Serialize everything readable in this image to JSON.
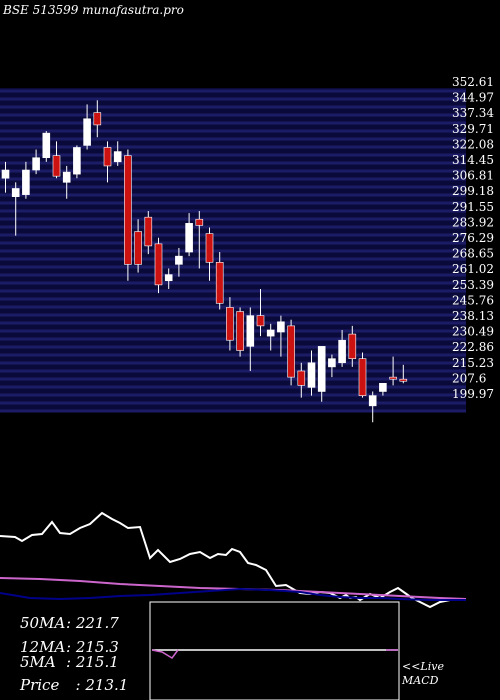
{
  "title": "BSE 513599 munafasutra.pro",
  "chart_data": {
    "type": "candlestick",
    "y_axis_labels": [
      "352.61",
      "344.97",
      "337.34",
      "329.71",
      "322.08",
      "314.45",
      "306.81",
      "299.18",
      "291.55",
      "283.92",
      "276.29",
      "268.65",
      "261.02",
      "253.39",
      "245.76",
      "238.13",
      "230.49",
      "222.86",
      "215.23",
      "207.6",
      "199.97"
    ],
    "ylim": [
      198,
      356
    ],
    "candles": [
      {
        "o": 312,
        "h": 320,
        "l": 305,
        "c": 316
      },
      {
        "o": 303,
        "h": 310,
        "l": 284,
        "c": 307
      },
      {
        "o": 304,
        "h": 320,
        "l": 302,
        "c": 316
      },
      {
        "o": 316,
        "h": 326,
        "l": 314,
        "c": 322
      },
      {
        "o": 322,
        "h": 335,
        "l": 320,
        "c": 334
      },
      {
        "o": 323,
        "h": 330,
        "l": 312,
        "c": 313
      },
      {
        "o": 310,
        "h": 318,
        "l": 302,
        "c": 315
      },
      {
        "o": 314,
        "h": 328,
        "l": 312,
        "c": 327
      },
      {
        "o": 328,
        "h": 348,
        "l": 326,
        "c": 341
      },
      {
        "o": 344,
        "h": 350,
        "l": 332,
        "c": 338
      },
      {
        "o": 327,
        "h": 330,
        "l": 310,
        "c": 318
      },
      {
        "o": 320,
        "h": 330,
        "l": 318,
        "c": 325
      },
      {
        "o": 323,
        "h": 326,
        "l": 262,
        "c": 270
      },
      {
        "o": 286,
        "h": 292,
        "l": 266,
        "c": 270
      },
      {
        "o": 293,
        "h": 296,
        "l": 275,
        "c": 279
      },
      {
        "o": 280,
        "h": 283,
        "l": 256,
        "c": 260
      },
      {
        "o": 262,
        "h": 268,
        "l": 258,
        "c": 265
      },
      {
        "o": 270,
        "h": 278,
        "l": 264,
        "c": 274
      },
      {
        "o": 276,
        "h": 295,
        "l": 274,
        "c": 290
      },
      {
        "o": 292,
        "h": 296,
        "l": 268,
        "c": 289
      },
      {
        "o": 285,
        "h": 288,
        "l": 262,
        "c": 271
      },
      {
        "o": 271,
        "h": 276,
        "l": 248,
        "c": 251
      },
      {
        "o": 249,
        "h": 254,
        "l": 228,
        "c": 233
      },
      {
        "o": 247,
        "h": 249,
        "l": 225,
        "c": 228
      },
      {
        "o": 230,
        "h": 249,
        "l": 218,
        "c": 245
      },
      {
        "o": 245,
        "h": 258,
        "l": 235,
        "c": 240
      },
      {
        "o": 235,
        "h": 241,
        "l": 228,
        "c": 238
      },
      {
        "o": 237,
        "h": 245,
        "l": 225,
        "c": 242
      },
      {
        "o": 240,
        "h": 243,
        "l": 211,
        "c": 215
      },
      {
        "o": 218,
        "h": 222,
        "l": 205,
        "c": 211
      },
      {
        "o": 210,
        "h": 228,
        "l": 206,
        "c": 222
      },
      {
        "o": 208,
        "h": 230,
        "l": 203,
        "c": 230
      },
      {
        "o": 220,
        "h": 226,
        "l": 215,
        "c": 224
      },
      {
        "o": 222,
        "h": 238,
        "l": 220,
        "c": 233
      },
      {
        "o": 236,
        "h": 240,
        "l": 220,
        "c": 224
      },
      {
        "o": 224,
        "h": 227,
        "l": 205,
        "c": 206
      },
      {
        "o": 201,
        "h": 208,
        "l": 193,
        "c": 206
      },
      {
        "o": 208,
        "h": 212,
        "l": 206,
        "c": 212
      },
      {
        "o": 215,
        "h": 225,
        "l": 211,
        "c": 214
      },
      {
        "o": 214,
        "h": 221,
        "l": 212,
        "c": 213
      }
    ],
    "moving_averages": {
      "ma50": "221.7",
      "ma12": "215.3",
      "ma5": "215.1",
      "price": "213.1"
    },
    "colors": {
      "up": "#ffffff",
      "down": "#cc1111",
      "grid": "#1c1c66",
      "volume_line": "#ffffff",
      "ma_line": "#cc66cc",
      "macd_base": "#000088"
    }
  },
  "legend": {
    "ma50_label": "50MA",
    "ma50_value": ": 221.7",
    "ma12_label": "12MA",
    "ma12_value": ": 215.3",
    "ma5_label": "5MA",
    "ma5_value": ": 215.1",
    "price_label": "Price",
    "price_value": "  : 213.1"
  },
  "macd": {
    "live_label": "<<Live",
    "macd_label": "MACD"
  }
}
